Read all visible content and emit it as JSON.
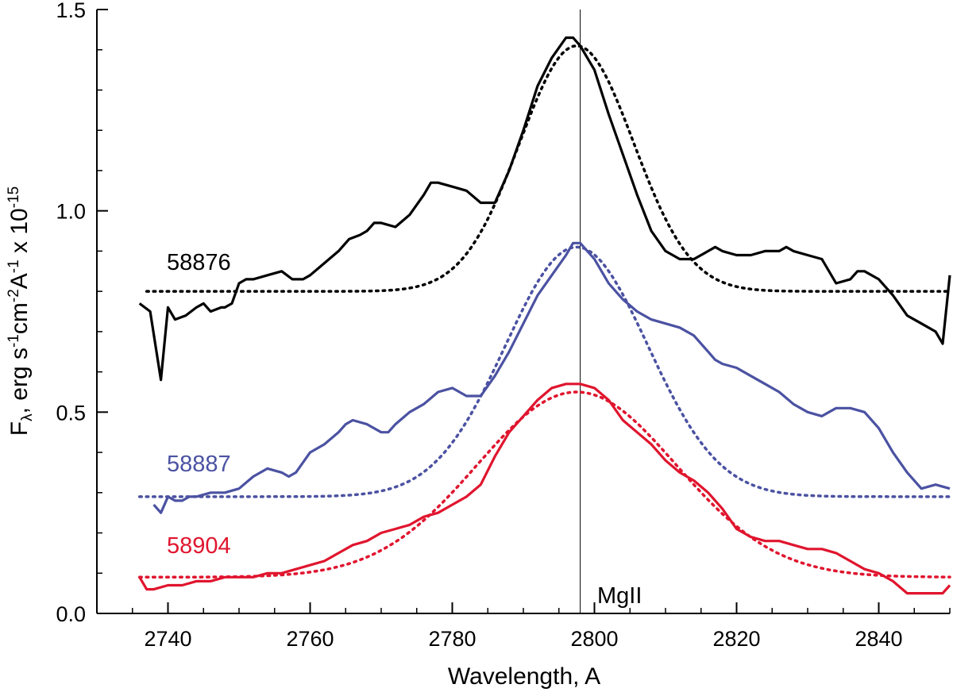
{
  "chart_data": {
    "type": "line",
    "title": "",
    "xlabel": "Wavelength, A",
    "ylabel": {
      "main": "F",
      "sub": "λ",
      "rest": ", erg s",
      "exp1": "-1",
      "cm": "cm",
      "exp2": "-2",
      "ang": "A",
      "exp3": "-1",
      "times": " x 10",
      "exp4": "-15"
    },
    "xlim": [
      2730,
      2850
    ],
    "ylim": [
      0.0,
      1.5
    ],
    "xticks": [
      "2740",
      "2760",
      "2780",
      "2800",
      "2820",
      "2840"
    ],
    "yticks": [
      "0.0",
      "0.5",
      "1.0",
      "1.5"
    ],
    "reference_line": {
      "x": 2798,
      "label": "MgII"
    },
    "colors": {
      "black": "#000000",
      "blue": "#4b52a2",
      "red": "#e0152e"
    },
    "series": [
      {
        "name": "58876",
        "color": "#000000",
        "observed": {
          "x": [
            2736,
            2737.5,
            2739,
            2740,
            2741,
            2742.5,
            2744,
            2745,
            2746,
            2747.5,
            2748,
            2749,
            2750,
            2751,
            2752,
            2754,
            2756,
            2757.5,
            2759,
            2760,
            2762,
            2764,
            2765.5,
            2767,
            2768,
            2769,
            2770,
            2772,
            2774,
            2776,
            2777,
            2778,
            2780,
            2782,
            2784,
            2786,
            2788,
            2790,
            2792,
            2794,
            2796,
            2797,
            2798,
            2800,
            2802,
            2804,
            2806,
            2808,
            2810,
            2812,
            2814,
            2816,
            2817,
            2818,
            2820,
            2822,
            2824,
            2826,
            2827,
            2828,
            2830,
            2832,
            2834,
            2836,
            2837,
            2838,
            2840,
            2842,
            2844,
            2846,
            2848,
            2849,
            2850
          ],
          "y": [
            0.77,
            0.75,
            0.58,
            0.76,
            0.73,
            0.74,
            0.76,
            0.77,
            0.75,
            0.76,
            0.76,
            0.77,
            0.82,
            0.83,
            0.83,
            0.84,
            0.85,
            0.83,
            0.83,
            0.84,
            0.87,
            0.9,
            0.93,
            0.94,
            0.95,
            0.97,
            0.97,
            0.96,
            0.99,
            1.04,
            1.07,
            1.07,
            1.06,
            1.05,
            1.02,
            1.02,
            1.1,
            1.2,
            1.31,
            1.38,
            1.43,
            1.43,
            1.41,
            1.35,
            1.24,
            1.14,
            1.04,
            0.95,
            0.9,
            0.88,
            0.88,
            0.9,
            0.91,
            0.9,
            0.89,
            0.89,
            0.9,
            0.9,
            0.91,
            0.9,
            0.89,
            0.88,
            0.82,
            0.83,
            0.85,
            0.85,
            0.83,
            0.79,
            0.74,
            0.72,
            0.7,
            0.67,
            0.84
          ]
        },
        "fit": {
          "baseline": 0.8,
          "amplitude": 0.61,
          "center": 2797.5,
          "sigma": 8.0,
          "x_start": 2737
        }
      },
      {
        "name": "58887",
        "color": "#4b52a2",
        "observed": {
          "x": [
            2738,
            2739,
            2740,
            2741,
            2742,
            2743,
            2744,
            2746,
            2748,
            2750,
            2752,
            2754,
            2756,
            2757,
            2758,
            2760,
            2762,
            2764,
            2765,
            2766,
            2768,
            2770,
            2771,
            2772,
            2774,
            2776,
            2778,
            2780,
            2782,
            2784,
            2786,
            2788,
            2790,
            2792,
            2794,
            2796,
            2797,
            2798,
            2800,
            2802,
            2804,
            2806,
            2808,
            2810,
            2812,
            2814,
            2816,
            2817,
            2818,
            2820,
            2822,
            2824,
            2826,
            2828,
            2830,
            2832,
            2833,
            2834,
            2836,
            2838,
            2840,
            2842,
            2844,
            2846,
            2848,
            2850
          ],
          "y": [
            0.27,
            0.25,
            0.29,
            0.28,
            0.28,
            0.29,
            0.29,
            0.3,
            0.3,
            0.31,
            0.34,
            0.36,
            0.35,
            0.34,
            0.35,
            0.4,
            0.42,
            0.45,
            0.47,
            0.48,
            0.47,
            0.45,
            0.45,
            0.47,
            0.5,
            0.52,
            0.55,
            0.56,
            0.54,
            0.54,
            0.59,
            0.65,
            0.72,
            0.79,
            0.84,
            0.89,
            0.92,
            0.92,
            0.88,
            0.82,
            0.78,
            0.75,
            0.73,
            0.72,
            0.71,
            0.69,
            0.65,
            0.63,
            0.62,
            0.61,
            0.59,
            0.57,
            0.55,
            0.52,
            0.5,
            0.49,
            0.5,
            0.51,
            0.51,
            0.5,
            0.46,
            0.4,
            0.35,
            0.31,
            0.32,
            0.31
          ]
        },
        "fit": {
          "baseline": 0.29,
          "amplitude": 0.62,
          "center": 2797.5,
          "sigma": 10.0,
          "x_start": 2736
        }
      },
      {
        "name": "58904",
        "color": "#e0152e",
        "observed": {
          "x": [
            2736,
            2737,
            2738,
            2740,
            2742,
            2744,
            2746,
            2748,
            2750,
            2752,
            2754,
            2756,
            2758,
            2760,
            2762,
            2764,
            2766,
            2768,
            2770,
            2772,
            2774,
            2776,
            2778,
            2780,
            2782,
            2784,
            2786,
            2788,
            2790,
            2792,
            2794,
            2796,
            2798,
            2800,
            2802,
            2804,
            2806,
            2808,
            2810,
            2812,
            2814,
            2816,
            2818,
            2820,
            2822,
            2824,
            2826,
            2828,
            2830,
            2832,
            2834,
            2836,
            2838,
            2840,
            2842,
            2844,
            2846,
            2848,
            2849,
            2850
          ],
          "y": [
            0.09,
            0.06,
            0.06,
            0.07,
            0.07,
            0.08,
            0.08,
            0.09,
            0.09,
            0.09,
            0.1,
            0.1,
            0.11,
            0.12,
            0.13,
            0.15,
            0.17,
            0.18,
            0.2,
            0.21,
            0.22,
            0.24,
            0.25,
            0.27,
            0.29,
            0.32,
            0.39,
            0.45,
            0.49,
            0.53,
            0.56,
            0.57,
            0.57,
            0.56,
            0.53,
            0.48,
            0.45,
            0.42,
            0.38,
            0.35,
            0.33,
            0.3,
            0.26,
            0.21,
            0.19,
            0.18,
            0.18,
            0.17,
            0.16,
            0.16,
            0.15,
            0.13,
            0.11,
            0.1,
            0.08,
            0.05,
            0.05,
            0.05,
            0.05,
            0.07
          ]
        },
        "fit": {
          "baseline": 0.09,
          "amplitude": 0.46,
          "center": 2797.5,
          "sigma": 14.0,
          "x_start": 2736
        }
      }
    ]
  }
}
